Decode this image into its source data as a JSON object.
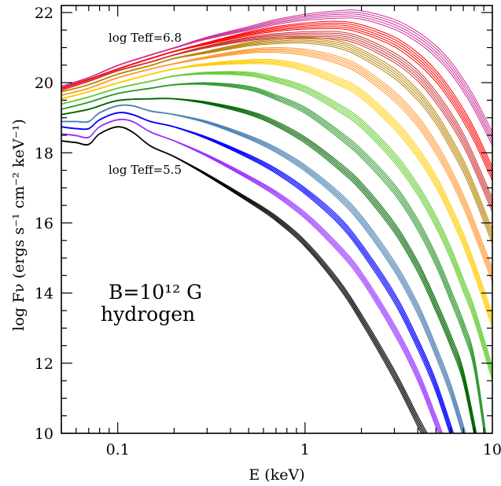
{
  "chart_data": {
    "type": "line",
    "xlabel": "E (keV)",
    "ylabel": "log Fν (ergs s⁻¹ cm⁻² keV⁻¹)",
    "x_scale": "log",
    "xlim": [
      0.05,
      10
    ],
    "ylim": [
      10,
      22.2
    ],
    "x_ticks": [
      {
        "value": 0.1,
        "label": "0.1"
      },
      {
        "value": 1,
        "label": "1"
      },
      {
        "value": 10,
        "label": "10"
      }
    ],
    "y_ticks": [
      {
        "value": 10,
        "label": "10"
      },
      {
        "value": 12,
        "label": "12"
      },
      {
        "value": 14,
        "label": "14"
      },
      {
        "value": 16,
        "label": "16"
      },
      {
        "value": 18,
        "label": "18"
      },
      {
        "value": 20,
        "label": "20"
      },
      {
        "value": 22,
        "label": "22"
      }
    ],
    "annotations": {
      "top_label": "log Teff=6.8",
      "bottom_label": "log Teff=5.5",
      "field_label": "B=10¹² G",
      "composition_label": "hydrogen"
    },
    "grid": false,
    "legend": "none",
    "groups": [
      {
        "color": "#000000",
        "logT": 5.5,
        "x": [
          0.05,
          0.06,
          0.07,
          0.08,
          0.1,
          0.12,
          0.15,
          0.2,
          0.3,
          0.5,
          0.7,
          1,
          1.5,
          2,
          3,
          4,
          4.6
        ],
        "y": [
          18.35,
          18.3,
          18.25,
          18.55,
          18.75,
          18.6,
          18.2,
          17.9,
          17.4,
          16.7,
          16.2,
          15.5,
          14.4,
          13.4,
          11.8,
          10.5,
          9.9
        ]
      },
      {
        "color": "#9933ff",
        "logT": 5.6,
        "x": [
          0.05,
          0.06,
          0.07,
          0.08,
          0.1,
          0.12,
          0.15,
          0.2,
          0.3,
          0.5,
          0.7,
          1,
          1.5,
          2,
          3,
          4,
          5,
          5.5
        ],
        "y": [
          18.55,
          18.5,
          18.45,
          18.75,
          18.95,
          18.9,
          18.6,
          18.35,
          17.95,
          17.35,
          16.9,
          16.3,
          15.4,
          14.6,
          13.1,
          11.8,
          10.5,
          9.9
        ]
      },
      {
        "color": "#0000ff",
        "logT": 5.7,
        "x": [
          0.05,
          0.06,
          0.07,
          0.08,
          0.1,
          0.12,
          0.15,
          0.2,
          0.3,
          0.5,
          0.7,
          1,
          1.5,
          2,
          3,
          4,
          5,
          6.3
        ],
        "y": [
          18.75,
          18.7,
          18.7,
          18.95,
          19.15,
          19.1,
          18.9,
          18.75,
          18.45,
          17.95,
          17.55,
          17.0,
          16.2,
          15.4,
          14.0,
          12.7,
          11.5,
          9.9
        ]
      },
      {
        "color": "#4d80b3",
        "logT": 5.8,
        "x": [
          0.05,
          0.06,
          0.07,
          0.08,
          0.1,
          0.12,
          0.15,
          0.2,
          0.3,
          0.5,
          0.7,
          1,
          1.5,
          2,
          3,
          4,
          5,
          6,
          7.3
        ],
        "y": [
          18.9,
          18.9,
          18.9,
          19.15,
          19.35,
          19.35,
          19.2,
          19.1,
          18.9,
          18.5,
          18.15,
          17.65,
          16.9,
          16.2,
          14.9,
          13.7,
          12.5,
          11.4,
          9.9
        ]
      },
      {
        "color": "#006600",
        "logT": 5.9,
        "x": [
          0.05,
          0.07,
          0.1,
          0.15,
          0.2,
          0.3,
          0.5,
          0.7,
          1,
          1.5,
          2,
          3,
          4,
          5,
          6,
          7,
          8.3
        ],
        "y": [
          19.1,
          19.25,
          19.5,
          19.55,
          19.55,
          19.45,
          19.2,
          18.9,
          18.45,
          17.75,
          17.15,
          16.0,
          14.9,
          13.8,
          12.8,
          11.8,
          9.9
        ]
      },
      {
        "color": "#339933",
        "logT": 6.0,
        "x": [
          0.05,
          0.07,
          0.1,
          0.15,
          0.2,
          0.3,
          0.5,
          0.7,
          1,
          1.5,
          2,
          3,
          4,
          5,
          6,
          7,
          8,
          9.3
        ],
        "y": [
          19.25,
          19.45,
          19.7,
          19.85,
          19.95,
          20.0,
          19.9,
          19.65,
          19.3,
          18.65,
          18.1,
          17.1,
          16.1,
          15.1,
          14.1,
          13.2,
          12.2,
          9.9
        ]
      },
      {
        "color": "#66cc33",
        "logT": 6.1,
        "x": [
          0.05,
          0.07,
          0.1,
          0.15,
          0.2,
          0.3,
          0.5,
          0.7,
          1,
          1.5,
          2,
          3,
          4,
          5,
          6,
          7,
          8,
          10
        ],
        "y": [
          19.4,
          19.6,
          19.85,
          20.05,
          20.2,
          20.3,
          20.3,
          20.15,
          19.9,
          19.4,
          18.95,
          18.0,
          17.1,
          16.2,
          15.3,
          14.4,
          13.6,
          11.9
        ]
      },
      {
        "color": "#ffcc00",
        "logT": 6.2,
        "x": [
          0.05,
          0.07,
          0.1,
          0.15,
          0.2,
          0.3,
          0.5,
          0.7,
          1,
          1.5,
          2,
          3,
          4,
          5,
          6,
          7,
          8,
          10
        ],
        "y": [
          19.55,
          19.75,
          20.0,
          20.25,
          20.4,
          20.55,
          20.65,
          20.65,
          20.5,
          20.15,
          19.8,
          18.95,
          18.15,
          17.35,
          16.5,
          15.7,
          14.9,
          13.4
        ]
      },
      {
        "color": "#ff9933",
        "logT": 6.3,
        "x": [
          0.05,
          0.07,
          0.1,
          0.15,
          0.2,
          0.3,
          0.5,
          0.7,
          1,
          1.5,
          2,
          3,
          4,
          5,
          6,
          7,
          8,
          10
        ],
        "y": [
          19.65,
          19.85,
          20.15,
          20.4,
          20.55,
          20.75,
          20.95,
          21.0,
          20.95,
          20.75,
          20.45,
          19.75,
          19.05,
          18.3,
          17.55,
          16.8,
          16.05,
          14.7
        ]
      },
      {
        "color": "#b8860b",
        "logT": 6.4,
        "x": [
          0.05,
          0.07,
          0.1,
          0.15,
          0.2,
          0.3,
          0.5,
          0.7,
          1,
          1.5,
          2,
          3,
          4,
          5,
          6,
          7,
          8,
          10
        ],
        "y": [
          19.75,
          19.95,
          20.25,
          20.5,
          20.7,
          20.9,
          21.15,
          21.25,
          21.3,
          21.2,
          20.95,
          20.4,
          19.8,
          19.15,
          18.45,
          17.8,
          17.1,
          15.8
        ]
      },
      {
        "color": "#cc3333",
        "logT": 6.5,
        "x": [
          0.05,
          0.07,
          0.1,
          0.15,
          0.2,
          0.3,
          0.5,
          0.7,
          1,
          1.5,
          2,
          3,
          4,
          5,
          6,
          7,
          8,
          10
        ],
        "y": [
          19.8,
          20.05,
          20.35,
          20.6,
          20.8,
          21.05,
          21.3,
          21.4,
          21.45,
          21.45,
          21.3,
          20.85,
          20.35,
          19.75,
          19.15,
          18.55,
          17.9,
          16.7
        ]
      },
      {
        "color": "#ff0000",
        "logT": 6.6,
        "x": [
          0.05,
          0.07,
          0.1,
          0.15,
          0.2,
          0.3,
          0.5,
          0.7,
          1,
          1.5,
          2,
          3,
          4,
          5,
          6,
          7,
          8,
          10
        ],
        "y": [
          19.85,
          20.1,
          20.4,
          20.7,
          20.9,
          21.15,
          21.45,
          21.6,
          21.7,
          21.75,
          21.65,
          21.3,
          20.85,
          20.35,
          19.8,
          19.25,
          18.7,
          17.6
        ]
      },
      {
        "color": "#cc3399",
        "logT": 6.8,
        "x": [
          0.05,
          0.07,
          0.1,
          0.15,
          0.2,
          0.3,
          0.5,
          0.7,
          1,
          1.5,
          2,
          3,
          4,
          5,
          6,
          7,
          8,
          10
        ],
        "y": [
          19.9,
          20.15,
          20.5,
          20.8,
          21.0,
          21.3,
          21.6,
          21.8,
          21.95,
          22.05,
          22.05,
          21.8,
          21.45,
          21.05,
          20.6,
          20.1,
          19.6,
          18.6
        ]
      }
    ]
  }
}
